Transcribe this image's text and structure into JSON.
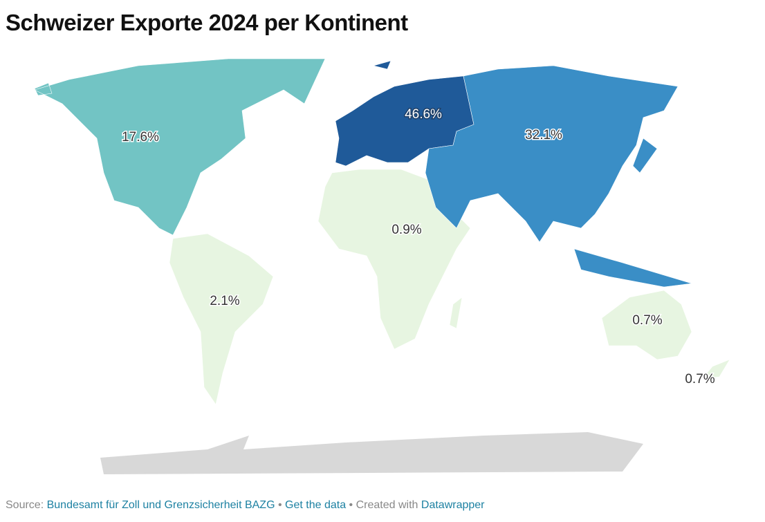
{
  "chart_data": {
    "type": "choropleth",
    "title": "Schweizer Exporte 2024 per Kontinent",
    "values": [
      17.6,
      2.1,
      46.6,
      0.9,
      32.1,
      0.7,
      0.7
    ],
    "value_labels": [
      "17.6%",
      "2.1%",
      "46.6%",
      "0.9%",
      "32.1%",
      "0.7%",
      "0.7%"
    ],
    "colors": [
      "#72c4c4",
      "#e7f5e1",
      "#1f5a99",
      "#e7f5e1",
      "#3a8ec6",
      "#e7f5e1",
      "#e7f5e1"
    ],
    "source_label": "Source:",
    "source": "Bundesamt für Zoll und Grenzsicherheit BAZG",
    "separator": "•",
    "get_data": "Get the data",
    "created_with": "Created with",
    "credit": "Datawrapper"
  }
}
